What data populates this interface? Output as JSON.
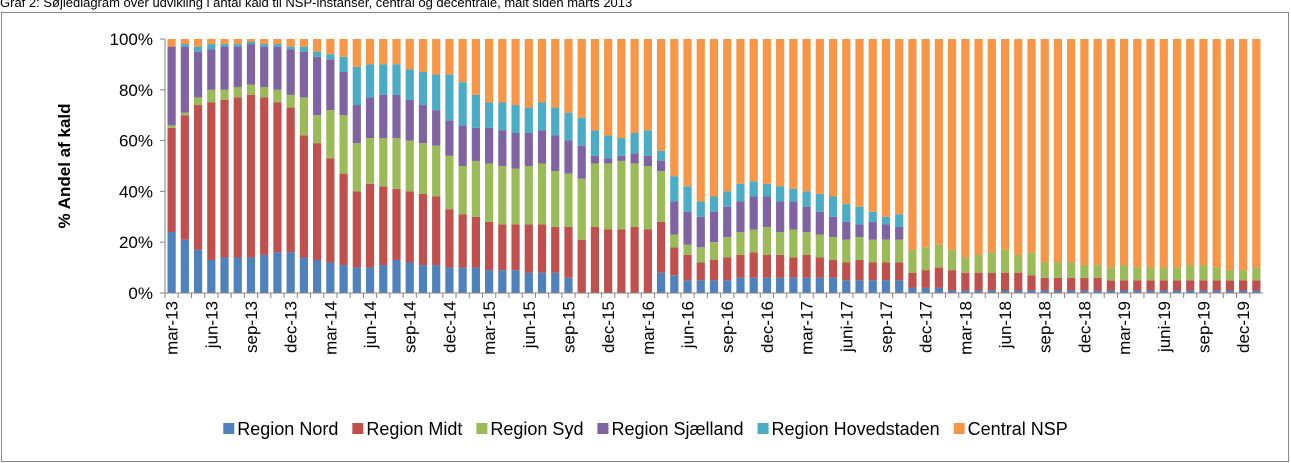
{
  "chart_data": {
    "type": "stacked-bar",
    "title": "Graf 2: Søjlediagram over udvikling i antal kald til NSP-instanser, central og decentrale, målt siden marts 2013",
    "y_label": "% Andel af kald",
    "categories": [
      "mar-13",
      null,
      null,
      "jun-13",
      null,
      null,
      "sep-13",
      null,
      null,
      "dec-13",
      null,
      null,
      "mar-14",
      null,
      null,
      "jun-14",
      null,
      null,
      "sep-14",
      null,
      null,
      "dec-14",
      null,
      null,
      "mar-15",
      null,
      null,
      "jun-15",
      null,
      null,
      "sep-15",
      null,
      null,
      "dec-15",
      null,
      null,
      "mar-16",
      null,
      null,
      "jun-16",
      null,
      null,
      "sep-16",
      null,
      null,
      "dec-16",
      null,
      null,
      "mar-17",
      null,
      null,
      "juni-17",
      null,
      null,
      "sep-17",
      null,
      null,
      "dec-17",
      null,
      null,
      "mar-18",
      null,
      null,
      "jun-18",
      null,
      null,
      "sep-18",
      null,
      null,
      "dec-18",
      null,
      null,
      "mar-19",
      null,
      null,
      "juni-19",
      null,
      null,
      "sep-19",
      null,
      null,
      "dec-19",
      null
    ],
    "series": [
      {
        "name": "Region Nord",
        "color": "#4f81bd",
        "values": [
          24,
          21,
          17,
          13,
          14,
          14,
          14,
          15,
          16,
          16,
          14,
          13,
          12,
          11,
          10,
          10,
          11,
          13,
          12,
          11,
          11,
          10,
          10,
          10,
          9,
          9,
          9,
          8,
          8,
          8,
          6,
          0,
          0,
          0,
          0,
          0,
          0,
          8,
          7,
          5,
          5,
          5,
          5,
          6,
          6,
          6,
          6,
          6,
          6,
          6,
          6,
          5,
          5,
          5,
          5,
          5,
          2,
          2,
          2,
          1,
          1,
          1,
          1,
          1,
          1,
          1,
          1,
          1,
          1,
          1,
          1,
          1,
          1,
          1,
          1,
          1,
          1,
          1,
          1,
          1,
          1,
          1,
          1
        ]
      },
      {
        "name": "Region Midt",
        "color": "#c0504d",
        "values": [
          41,
          49,
          57,
          62,
          62,
          63,
          64,
          62,
          59,
          57,
          48,
          46,
          41,
          36,
          30,
          33,
          31,
          28,
          28,
          28,
          27,
          23,
          21,
          20,
          19,
          18,
          18,
          19,
          19,
          18,
          20,
          21,
          26,
          25,
          25,
          26,
          25,
          20,
          11,
          10,
          7,
          8,
          9,
          9,
          10,
          9,
          9,
          8,
          9,
          8,
          7,
          7,
          8,
          7,
          7,
          7,
          6,
          7,
          8,
          8,
          7,
          7,
          7,
          7,
          7,
          6,
          5,
          5,
          5,
          5,
          5,
          4,
          4,
          4,
          4,
          4,
          4,
          4,
          4,
          4,
          4,
          4,
          4
        ]
      },
      {
        "name": "Region Syd",
        "color": "#9bbb59",
        "values": [
          1,
          1,
          3,
          5,
          4,
          4,
          4,
          4,
          5,
          5,
          15,
          11,
          19,
          23,
          19,
          18,
          19,
          20,
          20,
          20,
          20,
          21,
          19,
          22,
          23,
          23,
          22,
          23,
          24,
          22,
          21,
          24,
          25,
          26,
          27,
          25,
          25,
          20,
          5,
          4,
          6,
          7,
          8,
          9,
          9,
          11,
          9,
          11,
          9,
          9,
          9,
          9,
          9,
          9,
          9,
          9,
          9,
          9,
          9,
          8,
          6,
          7,
          8,
          9,
          7,
          9,
          6,
          6,
          6,
          5,
          5,
          5,
          6,
          5,
          5,
          5,
          5,
          6,
          6,
          5,
          4,
          4,
          5
        ]
      },
      {
        "name": "Region Sjælland",
        "color": "#8064a2",
        "values": [
          31,
          26,
          18,
          16,
          17,
          16,
          16,
          16,
          17,
          18,
          18,
          23,
          20,
          17,
          15,
          16,
          17,
          17,
          16,
          15,
          14,
          14,
          16,
          13,
          14,
          14,
          14,
          13,
          13,
          14,
          13,
          13,
          3,
          2,
          2,
          4,
          4,
          4,
          13,
          13,
          12,
          12,
          12,
          12,
          13,
          12,
          12,
          11,
          10,
          9,
          8,
          7,
          5,
          7,
          6,
          5,
          0,
          0,
          0,
          0,
          0,
          0,
          0,
          0,
          0,
          0,
          0,
          0,
          0,
          0,
          0,
          0,
          0,
          0,
          0,
          0,
          0,
          0,
          0,
          0,
          0,
          0,
          0
        ]
      },
      {
        "name": "Region Hovedstaden",
        "color": "#4bacc6",
        "values": [
          0,
          1,
          2,
          2,
          1,
          1,
          1,
          1,
          1,
          1,
          2,
          2,
          2,
          6,
          15,
          13,
          12,
          12,
          12,
          13,
          14,
          18,
          17,
          13,
          10,
          11,
          11,
          10,
          11,
          11,
          11,
          11,
          10,
          9,
          7,
          8,
          10,
          4,
          10,
          10,
          6,
          6,
          6,
          7,
          6,
          5,
          6,
          5,
          6,
          7,
          8,
          7,
          7,
          4,
          3,
          5,
          0,
          0,
          0,
          0,
          0,
          0,
          0,
          0,
          0,
          0,
          0,
          0,
          0,
          0,
          0,
          0,
          0,
          0,
          0,
          0,
          0,
          0,
          0,
          0,
          0,
          0,
          0
        ]
      },
      {
        "name": "Central NSP",
        "color": "#f79646",
        "values": [
          3,
          2,
          3,
          2,
          2,
          2,
          1,
          2,
          2,
          3,
          3,
          5,
          6,
          7,
          11,
          10,
          10,
          10,
          12,
          13,
          14,
          14,
          17,
          22,
          25,
          25,
          26,
          27,
          25,
          27,
          29,
          31,
          36,
          38,
          39,
          37,
          36,
          44,
          54,
          58,
          64,
          62,
          60,
          57,
          56,
          57,
          58,
          59,
          60,
          61,
          62,
          65,
          66,
          68,
          70,
          69,
          83,
          82,
          81,
          83,
          86,
          85,
          84,
          83,
          85,
          84,
          88,
          88,
          88,
          89,
          89,
          90,
          89,
          90,
          90,
          90,
          90,
          89,
          89,
          90,
          91,
          91,
          90
        ]
      }
    ],
    "ylim": [
      0,
      100
    ],
    "yticks": [
      {
        "value": 0,
        "label": "0%"
      },
      {
        "value": 20,
        "label": "20%"
      },
      {
        "value": 40,
        "label": "40%"
      },
      {
        "value": 60,
        "label": "60%"
      },
      {
        "value": 80,
        "label": "80%"
      },
      {
        "value": 100,
        "label": "100%"
      }
    ],
    "legend": "bottom"
  }
}
